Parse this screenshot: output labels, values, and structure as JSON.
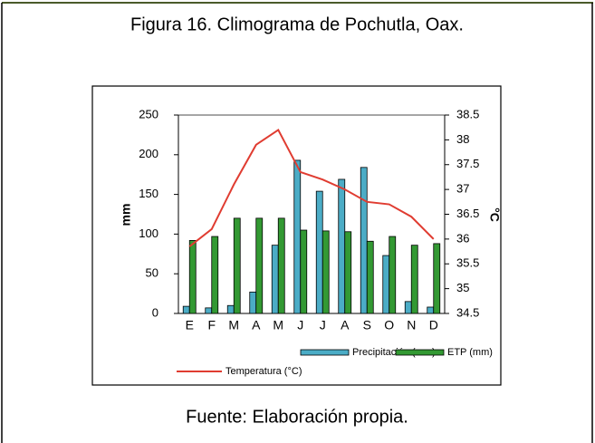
{
  "chart_data": {
    "type": "bar",
    "title": "Figura 16. Climograma de Pochutla, Oax.",
    "source": "Fuente: Elaboración propia.",
    "categories": [
      "E",
      "F",
      "M",
      "A",
      "M",
      "J",
      "J",
      "A",
      "S",
      "O",
      "N",
      "D"
    ],
    "series": [
      {
        "name": "Precipitación (mm)",
        "type": "bar",
        "color": "#4bacc6",
        "values": [
          9,
          7,
          10,
          27,
          86,
          193,
          154,
          169,
          184,
          73,
          15,
          8
        ]
      },
      {
        "name": "ETP (mm)",
        "type": "bar",
        "color": "#339933",
        "values": [
          92,
          97,
          120,
          120,
          120,
          105,
          104,
          103,
          91,
          97,
          86,
          88
        ]
      },
      {
        "name": "Temperatura (°C)",
        "type": "line",
        "axis": "y2",
        "color": "#e03c31",
        "values": [
          35.85,
          36.2,
          37.1,
          37.9,
          38.2,
          37.35,
          37.2,
          37.0,
          36.75,
          36.7,
          36.45,
          36.0
        ]
      }
    ],
    "ylabel": "mm",
    "y2label": "°C",
    "ylim": [
      0,
      250
    ],
    "yticks": [
      0,
      50,
      100,
      150,
      200,
      250
    ],
    "y2lim": [
      34.5,
      38.5
    ],
    "y2ticks": [
      34.5,
      35,
      35.5,
      36,
      36.5,
      37,
      37.5,
      38,
      38.5
    ],
    "grid": false
  }
}
